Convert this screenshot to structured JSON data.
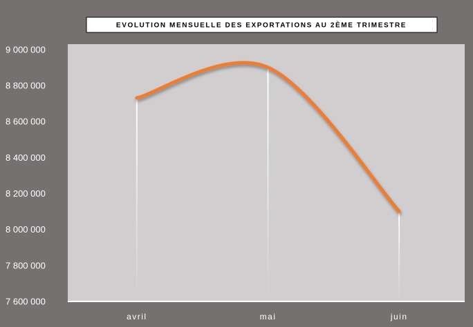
{
  "chart_data": {
    "type": "line",
    "title": "EVOLUTION MENSUELLE DES EXPORTATIONS AU 2ÈME TRIMESTRE",
    "categories": [
      "avril",
      "mai",
      "juin"
    ],
    "values": [
      8735000,
      8905000,
      8105000
    ],
    "color": "#ed7d31",
    "smooth": true,
    "drop_lines": true,
    "ylim": [
      7600000,
      9000000
    ],
    "yticks": [
      {
        "value": 7600000,
        "label": "7 600 000"
      },
      {
        "value": 7800000,
        "label": "7 800 000"
      },
      {
        "value": 8000000,
        "label": "8 000 000"
      },
      {
        "value": 8200000,
        "label": "8 200 000"
      },
      {
        "value": 8400000,
        "label": "8 400 000"
      },
      {
        "value": 8600000,
        "label": "8 600 000"
      },
      {
        "value": 8800000,
        "label": "8 800 000"
      },
      {
        "value": 9000000,
        "label": "9 000 000"
      }
    ]
  }
}
